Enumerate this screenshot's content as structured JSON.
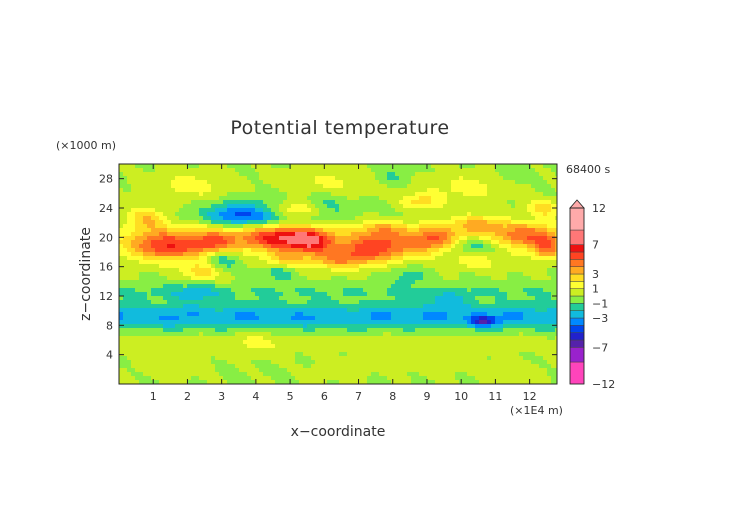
{
  "chart_data": {
    "type": "heatmap",
    "title": "Potential temperature",
    "xlabel": "x−coordinate",
    "ylabel": "z−coordinate",
    "x_unit": "(×1E4 m)",
    "y_unit": "(×1000 m)",
    "time_label": "68400 s",
    "xlim": [
      0,
      12.8
    ],
    "ylim": [
      0,
      30
    ],
    "x_ticks": [
      "1",
      "2",
      "3",
      "4",
      "5",
      "6",
      "7",
      "8",
      "9",
      "10",
      "11",
      "12"
    ],
    "y_ticks": [
      "4",
      "8",
      "12",
      "16",
      "20",
      "24",
      "28"
    ],
    "colorbar": {
      "labels": [
        "12",
        "7",
        "3",
        "1",
        "−1",
        "−3",
        "−7",
        "−12"
      ],
      "levels": [
        -12,
        -9,
        -7,
        -6,
        -5,
        -4,
        -3,
        -2,
        -1,
        0,
        1,
        2,
        3,
        4,
        5,
        6,
        7,
        9,
        12
      ],
      "colors": [
        "#ff44bb",
        "#9922cc",
        "#5522aa",
        "#2222cc",
        "#0044ee",
        "#0088ff",
        "#11bbdd",
        "#22cc99",
        "#88ee44",
        "#ccee22",
        "#ffff33",
        "#ffdd22",
        "#ffaa22",
        "#ff7722",
        "#ff4422",
        "#ee1111",
        "#ff7777",
        "#ffaaaa"
      ]
    },
    "features": [
      {
        "x": 4.1,
        "z": 22.8,
        "value": -3.5,
        "sx": 0.9,
        "sz": 0.9
      },
      {
        "x": 3.2,
        "z": 23.2,
        "value": -2.5,
        "sx": 0.7,
        "sz": 0.7
      },
      {
        "x": 6.0,
        "z": 24.2,
        "value": -2.0,
        "sx": 0.7,
        "sz": 0.7
      },
      {
        "x": 10.5,
        "z": 18.6,
        "value": -3.5,
        "sx": 0.9,
        "sz": 0.7
      },
      {
        "x": 3.0,
        "z": 17.0,
        "value": -2.5,
        "sx": 0.5,
        "sz": 0.6
      },
      {
        "x": 4.7,
        "z": 15.6,
        "value": -2.0,
        "sx": 0.5,
        "sz": 0.6
      },
      {
        "x": 8.5,
        "z": 14.8,
        "value": -1.5,
        "sx": 0.6,
        "sz": 0.6
      },
      {
        "x": 4.5,
        "z": 20.2,
        "value": 5.0,
        "sx": 1.0,
        "sz": 0.8
      },
      {
        "x": 5.6,
        "z": 19.6,
        "value": 5.5,
        "sx": 0.7,
        "sz": 0.7
      },
      {
        "x": 1.3,
        "z": 18.7,
        "value": 4.5,
        "sx": 1.0,
        "sz": 0.9
      },
      {
        "x": 2.8,
        "z": 19.4,
        "value": 4.0,
        "sx": 0.7,
        "sz": 0.8
      },
      {
        "x": 7.5,
        "z": 18.5,
        "value": 4.0,
        "sx": 1.1,
        "sz": 0.8
      },
      {
        "x": 9.2,
        "z": 19.8,
        "value": 4.0,
        "sx": 0.7,
        "sz": 0.8
      },
      {
        "x": 11.8,
        "z": 20.3,
        "value": 4.0,
        "sx": 0.9,
        "sz": 0.8
      },
      {
        "x": 6.5,
        "z": 17.0,
        "value": 3.5,
        "sx": 0.9,
        "sz": 0.6
      },
      {
        "x": 12.5,
        "z": 18.5,
        "value": 3.5,
        "sx": 0.4,
        "sz": 0.7
      },
      {
        "x": 5.2,
        "z": 23.8,
        "value": 3.0,
        "sx": 0.9,
        "sz": 0.5
      },
      {
        "x": 0.8,
        "z": 22.6,
        "value": 3.0,
        "sx": 0.6,
        "sz": 0.6
      },
      {
        "x": 10.5,
        "z": 21.9,
        "value": 3.0,
        "sx": 0.8,
        "sz": 0.6
      },
      {
        "x": 7.8,
        "z": 21.2,
        "value": 2.5,
        "sx": 0.8,
        "sz": 0.6
      },
      {
        "x": 8.8,
        "z": 24.8,
        "value": 2.5,
        "sx": 0.6,
        "sz": 0.5
      },
      {
        "x": 12.4,
        "z": 23.8,
        "value": 2.5,
        "sx": 0.5,
        "sz": 0.5
      },
      {
        "x": 2.4,
        "z": 15.3,
        "value": 2.5,
        "sx": 0.6,
        "sz": 0.5
      },
      {
        "x": 4.8,
        "z": 16.7,
        "value": 3.0,
        "sx": 0.6,
        "sz": 0.5
      },
      {
        "x": 10.4,
        "z": 17.0,
        "value": 2.5,
        "sx": 0.7,
        "sz": 0.6
      },
      {
        "x": 2.0,
        "z": 27.0,
        "value": 1.5,
        "sx": 1.2,
        "sz": 0.8
      },
      {
        "x": 6.2,
        "z": 27.5,
        "value": 1.2,
        "sx": 1.4,
        "sz": 0.8
      },
      {
        "x": 10.2,
        "z": 26.8,
        "value": 1.5,
        "sx": 1.2,
        "sz": 0.8
      },
      {
        "x": 8.0,
        "z": 28.3,
        "value": -1.2,
        "sx": 0.5,
        "sz": 0.5
      },
      {
        "x": 11.5,
        "z": 28.5,
        "value": -1.0,
        "sx": 0.5,
        "sz": 0.5
      },
      {
        "x": 1.5,
        "z": 3.0,
        "value": 1.0,
        "sx": 0.9,
        "sz": 0.9
      },
      {
        "x": 4.0,
        "z": 5.5,
        "value": 0.9,
        "sx": 0.9,
        "sz": 0.7
      },
      {
        "x": 9.3,
        "z": 3.5,
        "value": 1.0,
        "sx": 1.0,
        "sz": 0.8
      },
      {
        "x": 11.5,
        "z": 1.5,
        "value": 1.0,
        "sx": 0.8,
        "sz": 0.6
      },
      {
        "x": 6.5,
        "z": 2.0,
        "value": 0.8,
        "sx": 0.8,
        "sz": 0.6
      },
      {
        "x": 2.2,
        "z": 12.3,
        "value": -1.6,
        "sx": 0.8,
        "sz": 0.5
      },
      {
        "x": 9.5,
        "z": 11.5,
        "value": -1.5,
        "sx": 0.7,
        "sz": 0.5
      },
      {
        "x": 10.6,
        "z": 8.5,
        "value": -3.6,
        "sx": 0.4,
        "sz": 0.3
      }
    ]
  }
}
